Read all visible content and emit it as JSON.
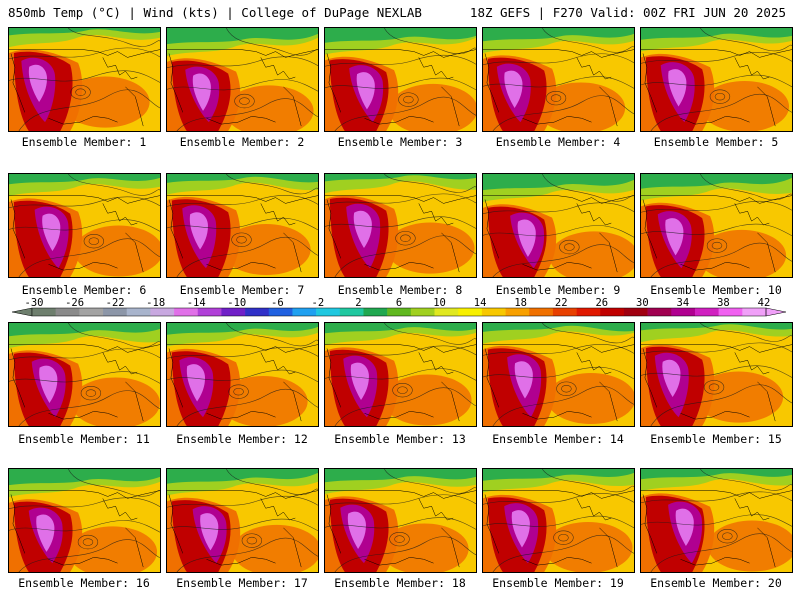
{
  "header": {
    "left": "850mb Temp (°C) | Wind (kts) | College of DuPage NEXLAB",
    "right": "18Z GEFS | F270 Valid: 00Z FRI JUN 20 2025"
  },
  "colorbar": {
    "tick_labels": [
      "-30",
      "-26",
      "-22",
      "-18",
      "-14",
      "-10",
      "-6",
      "-2",
      "2",
      "6",
      "10",
      "14",
      "18",
      "22",
      "26",
      "30",
      "34",
      "38",
      "42"
    ],
    "colors": [
      "#6e7f6e",
      "#8a8a8a",
      "#a3a3a3",
      "#8c96a8",
      "#a8b4cc",
      "#c8a8e0",
      "#e070e8",
      "#b040d8",
      "#7020c8",
      "#3030c8",
      "#2060e0",
      "#20a0f0",
      "#20c8e0",
      "#20c8a0",
      "#20a850",
      "#60b820",
      "#a0d020",
      "#e0e820",
      "#f8f000",
      "#f8c800",
      "#f8a000",
      "#f07000",
      "#e84000",
      "#e01800",
      "#c00000",
      "#a00010",
      "#a00050",
      "#b00090",
      "#d020c0",
      "#f060f0",
      "#f0a0f8"
    ]
  },
  "members": [
    {
      "label": "Ensemble Member: 1"
    },
    {
      "label": "Ensemble Member: 2"
    },
    {
      "label": "Ensemble Member: 3"
    },
    {
      "label": "Ensemble Member: 4"
    },
    {
      "label": "Ensemble Member: 5"
    },
    {
      "label": "Ensemble Member: 6"
    },
    {
      "label": "Ensemble Member: 7"
    },
    {
      "label": "Ensemble Member: 8"
    },
    {
      "label": "Ensemble Member: 9"
    },
    {
      "label": "Ensemble Member: 10"
    },
    {
      "label": "Ensemble Member: 11"
    },
    {
      "label": "Ensemble Member: 12"
    },
    {
      "label": "Ensemble Member: 13"
    },
    {
      "label": "Ensemble Member: 14"
    },
    {
      "label": "Ensemble Member: 15"
    },
    {
      "label": "Ensemble Member: 16"
    },
    {
      "label": "Ensemble Member: 17"
    },
    {
      "label": "Ensemble Member: 18"
    },
    {
      "label": "Ensemble Member: 19"
    },
    {
      "label": "Ensemble Member: 20"
    }
  ],
  "map_colors": {
    "cold": "#20a850",
    "cool": "#a0d020",
    "mild": "#f8c800",
    "warm": "#f07000",
    "hot": "#c00000",
    "very_hot": "#b00090",
    "extreme": "#e070e8"
  }
}
